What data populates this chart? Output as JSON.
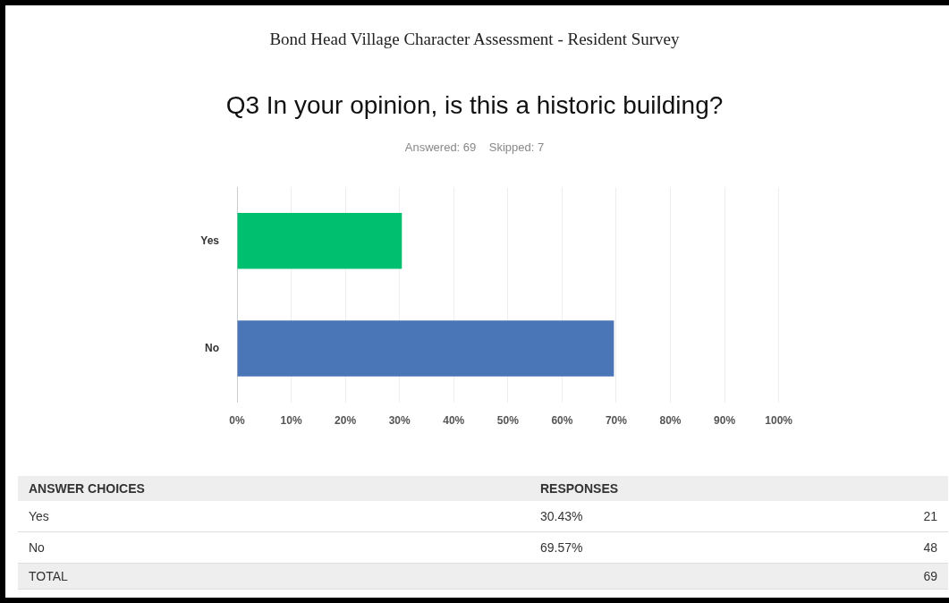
{
  "chart_data": {
    "type": "bar",
    "orientation": "horizontal",
    "title": "Q3 In your opinion, is this a historic building?",
    "subtitle": "Answered: 69    Skipped: 7",
    "categories": [
      "Yes",
      "No"
    ],
    "values": [
      30.43,
      69.57
    ],
    "colors": [
      "#00bf6f",
      "#4a76b8"
    ],
    "xlim": [
      0,
      100
    ],
    "xticks": [
      {
        "value": 0,
        "label": "0%"
      },
      {
        "value": 10,
        "label": "10%"
      },
      {
        "value": 20,
        "label": "20%"
      },
      {
        "value": 30,
        "label": "30%"
      },
      {
        "value": 40,
        "label": "40%"
      },
      {
        "value": 50,
        "label": "50%"
      },
      {
        "value": 60,
        "label": "60%"
      },
      {
        "value": 70,
        "label": "70%"
      },
      {
        "value": 80,
        "label": "80%"
      },
      {
        "value": 90,
        "label": "90%"
      },
      {
        "value": 100,
        "label": "100%"
      }
    ],
    "grid": "x",
    "legend": false,
    "annotations": [
      "Bond Head Village Character Assessment - Resident Survey",
      "ANSWER CHOICES",
      "RESPONSES",
      "30.43%",
      "21",
      "69.57%",
      "48",
      "TOTAL",
      "69"
    ]
  }
}
